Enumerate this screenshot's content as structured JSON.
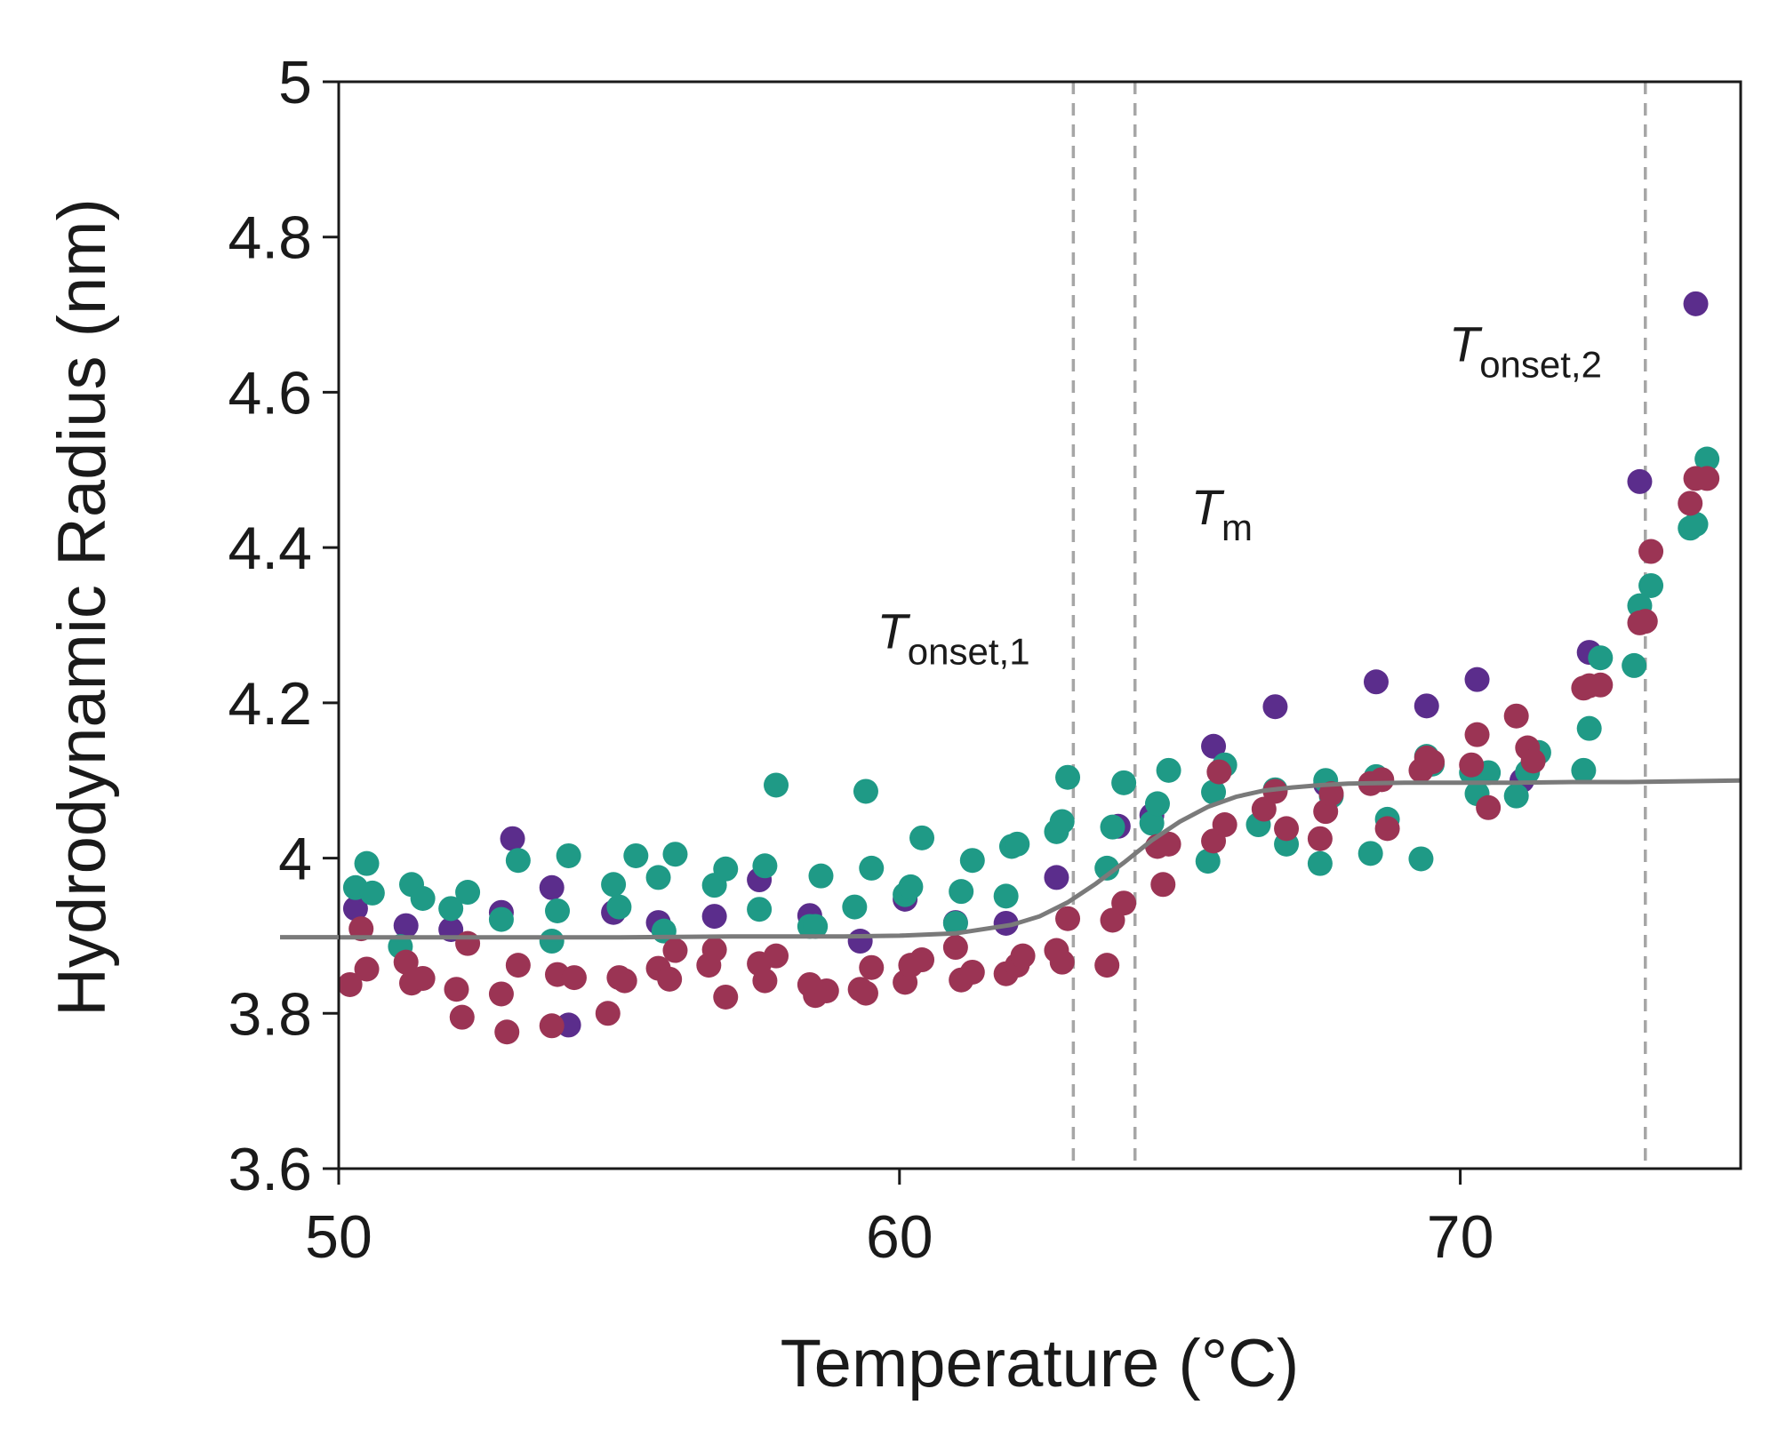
{
  "chart_data": {
    "type": "scatter",
    "xlabel": "Temperature (°C)",
    "ylabel": "Hydrodynamic Radius (nm)",
    "xlim": [
      50,
      75
    ],
    "ylim": [
      3.6,
      5.0
    ],
    "xticks": [
      50,
      60,
      70
    ],
    "xtick_labels": [
      "50",
      "60",
      "70"
    ],
    "yticks": [
      3.6,
      3.8,
      4.0,
      4.2,
      4.4,
      4.6,
      4.8,
      5.0
    ],
    "ytick_labels": [
      "3.6",
      "3.8",
      "4",
      "4.2",
      "4.4",
      "4.6",
      "4.8",
      "5"
    ],
    "grid": false,
    "colors": {
      "series_purple": "#5b2d8c",
      "series_teal": "#1f9a86",
      "series_maroon": "#9b3454",
      "fit_line": "#7a7a7a",
      "marker_line": "#a6a6a6",
      "axis": "#1a1a1a"
    },
    "series": [
      {
        "color": "#5b2d8c",
        "points": [
          [
            50.3,
            3.935
          ],
          [
            51.2,
            3.913
          ],
          [
            52.0,
            3.908
          ],
          [
            52.9,
            3.93
          ],
          [
            53.1,
            4.025
          ],
          [
            53.8,
            3.962
          ],
          [
            54.9,
            3.93
          ],
          [
            55.7,
            3.917
          ],
          [
            56.7,
            3.925
          ],
          [
            57.5,
            3.972
          ],
          [
            58.4,
            3.926
          ],
          [
            59.3,
            3.893
          ],
          [
            60.1,
            3.947
          ],
          [
            61.0,
            3.917
          ],
          [
            61.9,
            3.916
          ],
          [
            62.8,
            3.975
          ],
          [
            63.9,
            4.041
          ],
          [
            64.5,
            4.055
          ],
          [
            65.6,
            4.144
          ],
          [
            66.7,
            4.195
          ],
          [
            67.6,
            4.095
          ],
          [
            68.5,
            4.227
          ],
          [
            69.4,
            4.196
          ],
          [
            70.3,
            4.23
          ],
          [
            71.1,
            4.1
          ],
          [
            72.3,
            4.265
          ],
          [
            73.2,
            4.485
          ],
          [
            74.2,
            4.714
          ],
          [
            54.1,
            3.785
          ]
        ]
      },
      {
        "color": "#1f9a86",
        "points": [
          [
            50.3,
            3.962
          ],
          [
            50.5,
            3.993
          ],
          [
            50.6,
            3.955
          ],
          [
            51.1,
            3.886
          ],
          [
            51.3,
            3.966
          ],
          [
            51.5,
            3.948
          ],
          [
            52.0,
            3.935
          ],
          [
            52.3,
            3.956
          ],
          [
            52.9,
            3.921
          ],
          [
            53.2,
            3.997
          ],
          [
            53.8,
            3.893
          ],
          [
            53.9,
            3.932
          ],
          [
            54.1,
            4.003
          ],
          [
            54.9,
            3.966
          ],
          [
            55.0,
            3.937
          ],
          [
            55.3,
            4.003
          ],
          [
            55.7,
            3.975
          ],
          [
            55.8,
            3.906
          ],
          [
            56.0,
            4.005
          ],
          [
            56.7,
            3.965
          ],
          [
            56.9,
            3.986
          ],
          [
            57.5,
            3.934
          ],
          [
            57.6,
            3.99
          ],
          [
            57.8,
            4.094
          ],
          [
            58.4,
            3.912
          ],
          [
            58.5,
            3.912
          ],
          [
            58.6,
            3.977
          ],
          [
            59.2,
            3.937
          ],
          [
            59.4,
            4.086
          ],
          [
            59.5,
            3.987
          ],
          [
            60.1,
            3.953
          ],
          [
            60.2,
            3.963
          ],
          [
            60.4,
            4.026
          ],
          [
            61.0,
            3.916
          ],
          [
            61.1,
            3.957
          ],
          [
            61.3,
            3.997
          ],
          [
            61.9,
            3.951
          ],
          [
            62.0,
            4.015
          ],
          [
            62.1,
            4.018
          ],
          [
            62.8,
            4.034
          ],
          [
            62.9,
            4.047
          ],
          [
            63.0,
            4.104
          ],
          [
            63.7,
            3.987
          ],
          [
            63.8,
            4.04
          ],
          [
            64.0,
            4.097
          ],
          [
            64.5,
            4.045
          ],
          [
            64.6,
            4.07
          ],
          [
            64.8,
            4.113
          ],
          [
            65.5,
            3.996
          ],
          [
            65.6,
            4.085
          ],
          [
            65.8,
            4.12
          ],
          [
            66.4,
            4.043
          ],
          [
            66.7,
            4.088
          ],
          [
            66.9,
            4.018
          ],
          [
            67.5,
            3.993
          ],
          [
            67.6,
            4.1
          ],
          [
            67.7,
            4.08
          ],
          [
            68.4,
            4.006
          ],
          [
            68.5,
            4.105
          ],
          [
            68.7,
            4.05
          ],
          [
            69.3,
            3.999
          ],
          [
            69.4,
            4.131
          ],
          [
            69.5,
            4.121
          ],
          [
            70.2,
            4.11
          ],
          [
            70.3,
            4.083
          ],
          [
            70.5,
            4.11
          ],
          [
            71.0,
            4.08
          ],
          [
            71.2,
            4.111
          ],
          [
            71.4,
            4.136
          ],
          [
            72.2,
            4.113
          ],
          [
            72.3,
            4.167
          ],
          [
            72.5,
            4.258
          ],
          [
            73.1,
            4.248
          ],
          [
            73.2,
            4.325
          ],
          [
            73.4,
            4.351
          ],
          [
            74.1,
            4.425
          ],
          [
            74.2,
            4.43
          ],
          [
            74.4,
            4.514
          ]
        ]
      },
      {
        "color": "#9b3454",
        "points": [
          [
            50.2,
            3.837
          ],
          [
            50.4,
            3.909
          ],
          [
            50.5,
            3.857
          ],
          [
            51.2,
            3.866
          ],
          [
            51.3,
            3.839
          ],
          [
            51.5,
            3.845
          ],
          [
            52.1,
            3.831
          ],
          [
            52.2,
            3.795
          ],
          [
            52.3,
            3.89
          ],
          [
            52.9,
            3.825
          ],
          [
            53.0,
            3.776
          ],
          [
            53.2,
            3.862
          ],
          [
            53.8,
            3.784
          ],
          [
            53.9,
            3.85
          ],
          [
            54.2,
            3.846
          ],
          [
            54.8,
            3.8
          ],
          [
            55.0,
            3.846
          ],
          [
            55.1,
            3.842
          ],
          [
            55.7,
            3.858
          ],
          [
            55.9,
            3.844
          ],
          [
            56.0,
            3.881
          ],
          [
            56.6,
            3.862
          ],
          [
            56.7,
            3.882
          ],
          [
            56.9,
            3.821
          ],
          [
            57.5,
            3.864
          ],
          [
            57.6,
            3.842
          ],
          [
            57.8,
            3.874
          ],
          [
            58.4,
            3.837
          ],
          [
            58.5,
            3.823
          ],
          [
            58.7,
            3.829
          ],
          [
            59.3,
            3.831
          ],
          [
            59.4,
            3.826
          ],
          [
            59.5,
            3.859
          ],
          [
            60.1,
            3.84
          ],
          [
            60.2,
            3.862
          ],
          [
            60.4,
            3.869
          ],
          [
            61.0,
            3.885
          ],
          [
            61.1,
            3.843
          ],
          [
            61.3,
            3.853
          ],
          [
            61.9,
            3.851
          ],
          [
            62.1,
            3.862
          ],
          [
            62.2,
            3.874
          ],
          [
            62.8,
            3.881
          ],
          [
            62.9,
            3.866
          ],
          [
            63.0,
            3.922
          ],
          [
            63.7,
            3.862
          ],
          [
            63.8,
            3.92
          ],
          [
            64.0,
            3.942
          ],
          [
            64.6,
            4.015
          ],
          [
            64.7,
            3.966
          ],
          [
            64.8,
            4.018
          ],
          [
            65.6,
            4.022
          ],
          [
            65.7,
            4.111
          ],
          [
            65.8,
            4.043
          ],
          [
            66.5,
            4.063
          ],
          [
            66.7,
            4.086
          ],
          [
            66.9,
            4.038
          ],
          [
            67.5,
            4.025
          ],
          [
            67.6,
            4.06
          ],
          [
            67.7,
            4.083
          ],
          [
            68.4,
            4.096
          ],
          [
            68.6,
            4.101
          ],
          [
            68.7,
            4.038
          ],
          [
            69.3,
            4.113
          ],
          [
            69.4,
            4.129
          ],
          [
            69.5,
            4.124
          ],
          [
            70.2,
            4.12
          ],
          [
            70.3,
            4.159
          ],
          [
            70.5,
            4.065
          ],
          [
            71.0,
            4.183
          ],
          [
            71.2,
            4.142
          ],
          [
            71.3,
            4.125
          ],
          [
            72.2,
            4.219
          ],
          [
            72.3,
            4.222
          ],
          [
            72.5,
            4.223
          ],
          [
            73.2,
            4.303
          ],
          [
            73.3,
            4.305
          ],
          [
            73.4,
            4.395
          ],
          [
            74.1,
            4.457
          ],
          [
            74.2,
            4.489
          ],
          [
            74.4,
            4.489
          ]
        ]
      }
    ],
    "fit_curve": {
      "color": "#7a7a7a",
      "points": [
        [
          49.0,
          3.898
        ],
        [
          51.0,
          3.898
        ],
        [
          53.0,
          3.898
        ],
        [
          55.0,
          3.898
        ],
        [
          57.0,
          3.899
        ],
        [
          59.0,
          3.899
        ],
        [
          60.0,
          3.9
        ],
        [
          61.0,
          3.903
        ],
        [
          62.0,
          3.914
        ],
        [
          62.5,
          3.925
        ],
        [
          63.0,
          3.943
        ],
        [
          63.5,
          3.967
        ],
        [
          64.0,
          3.994
        ],
        [
          64.5,
          4.023
        ],
        [
          65.0,
          4.047
        ],
        [
          65.5,
          4.066
        ],
        [
          66.0,
          4.079
        ],
        [
          66.5,
          4.087
        ],
        [
          67.0,
          4.091
        ],
        [
          67.5,
          4.094
        ],
        [
          68.0,
          4.096
        ],
        [
          69.0,
          4.097
        ],
        [
          70.0,
          4.097
        ],
        [
          71.0,
          4.097
        ],
        [
          72.0,
          4.098
        ],
        [
          73.0,
          4.098
        ],
        [
          74.0,
          4.099
        ],
        [
          75.0,
          4.1
        ]
      ]
    },
    "markers": [
      {
        "x": 63.1,
        "label_symbol": "T",
        "label_sub": "onset,1"
      },
      {
        "x": 64.2,
        "label_symbol": "T",
        "label_sub": "m"
      },
      {
        "x": 73.3,
        "label_symbol": "T",
        "label_sub": "onset,2"
      }
    ],
    "annotations": [
      {
        "symbol": "T",
        "sub": "onset,1",
        "x": 59.6,
        "y": 4.27
      },
      {
        "symbol": "T",
        "sub": "m",
        "x": 65.2,
        "y": 4.43
      },
      {
        "symbol": "T",
        "sub": "onset,2",
        "x": 69.8,
        "y": 4.64
      }
    ]
  }
}
